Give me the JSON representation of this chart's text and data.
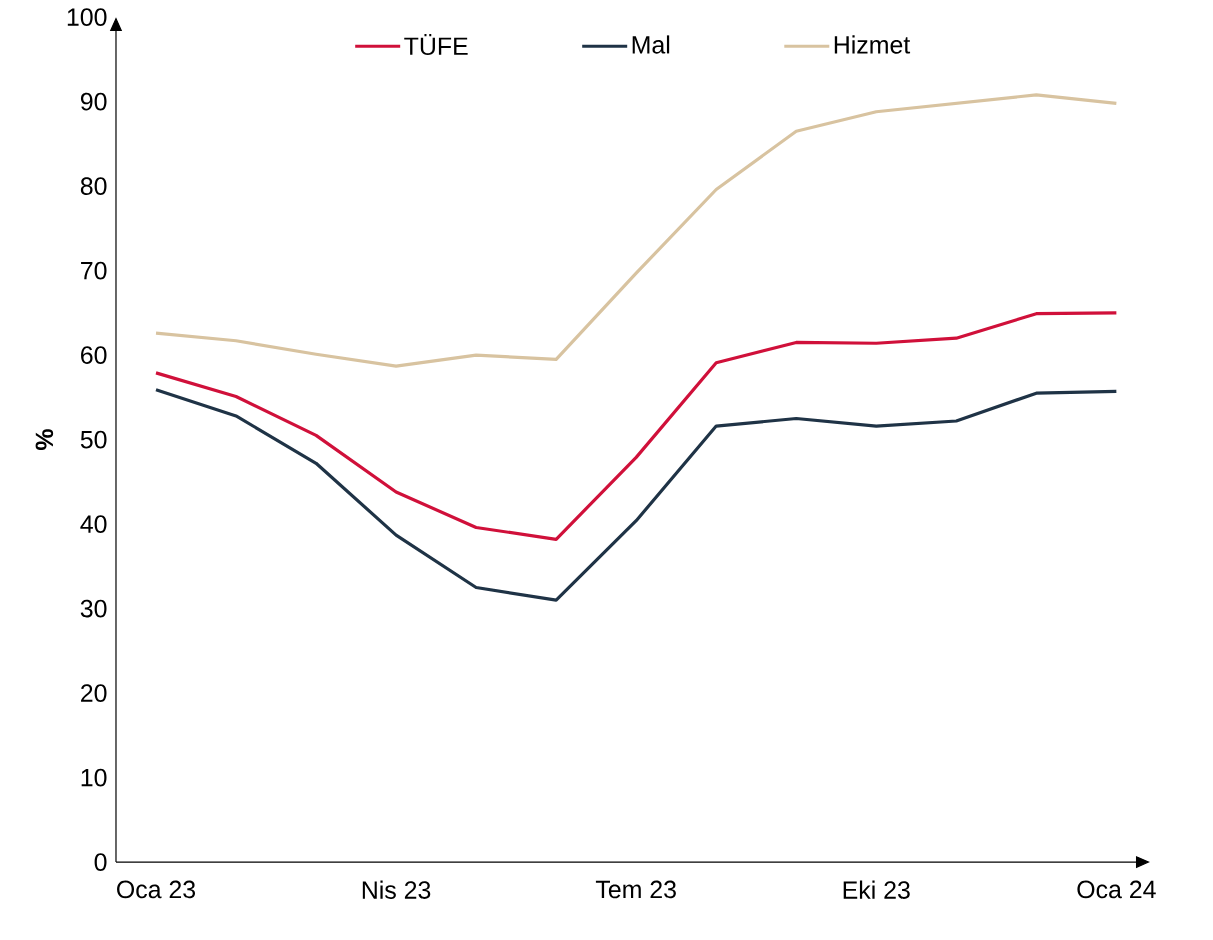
{
  "chart_data": {
    "type": "line",
    "ylabel": "%",
    "legend": "top",
    "categories": [
      "Oca 23",
      null,
      null,
      "Nis 23",
      null,
      null,
      "Tem 23",
      null,
      null,
      "Eki 23",
      null,
      null,
      "Oca 24"
    ],
    "ylim": [
      0,
      100
    ],
    "yticks": [
      0,
      10,
      20,
      30,
      40,
      50,
      60,
      70,
      80,
      90,
      100
    ],
    "series": [
      {
        "name": "TÜFE",
        "color": "#d0103a",
        "values": [
          57.9,
          55.1,
          50.5,
          43.8,
          39.6,
          38.2,
          47.9,
          59.1,
          61.5,
          61.4,
          62.0,
          64.9,
          65.0
        ]
      },
      {
        "name": "Mal",
        "color": "#1f3346",
        "values": [
          55.9,
          52.8,
          47.2,
          38.7,
          32.5,
          31.0,
          40.4,
          51.6,
          52.5,
          51.6,
          52.2,
          55.5,
          55.7
        ]
      },
      {
        "name": "Hizmet",
        "color": "#d8c3a0",
        "values": [
          62.6,
          61.7,
          60.1,
          58.7,
          60.0,
          59.5,
          69.7,
          79.6,
          86.5,
          88.8,
          89.8,
          90.8,
          89.8
        ]
      }
    ]
  }
}
